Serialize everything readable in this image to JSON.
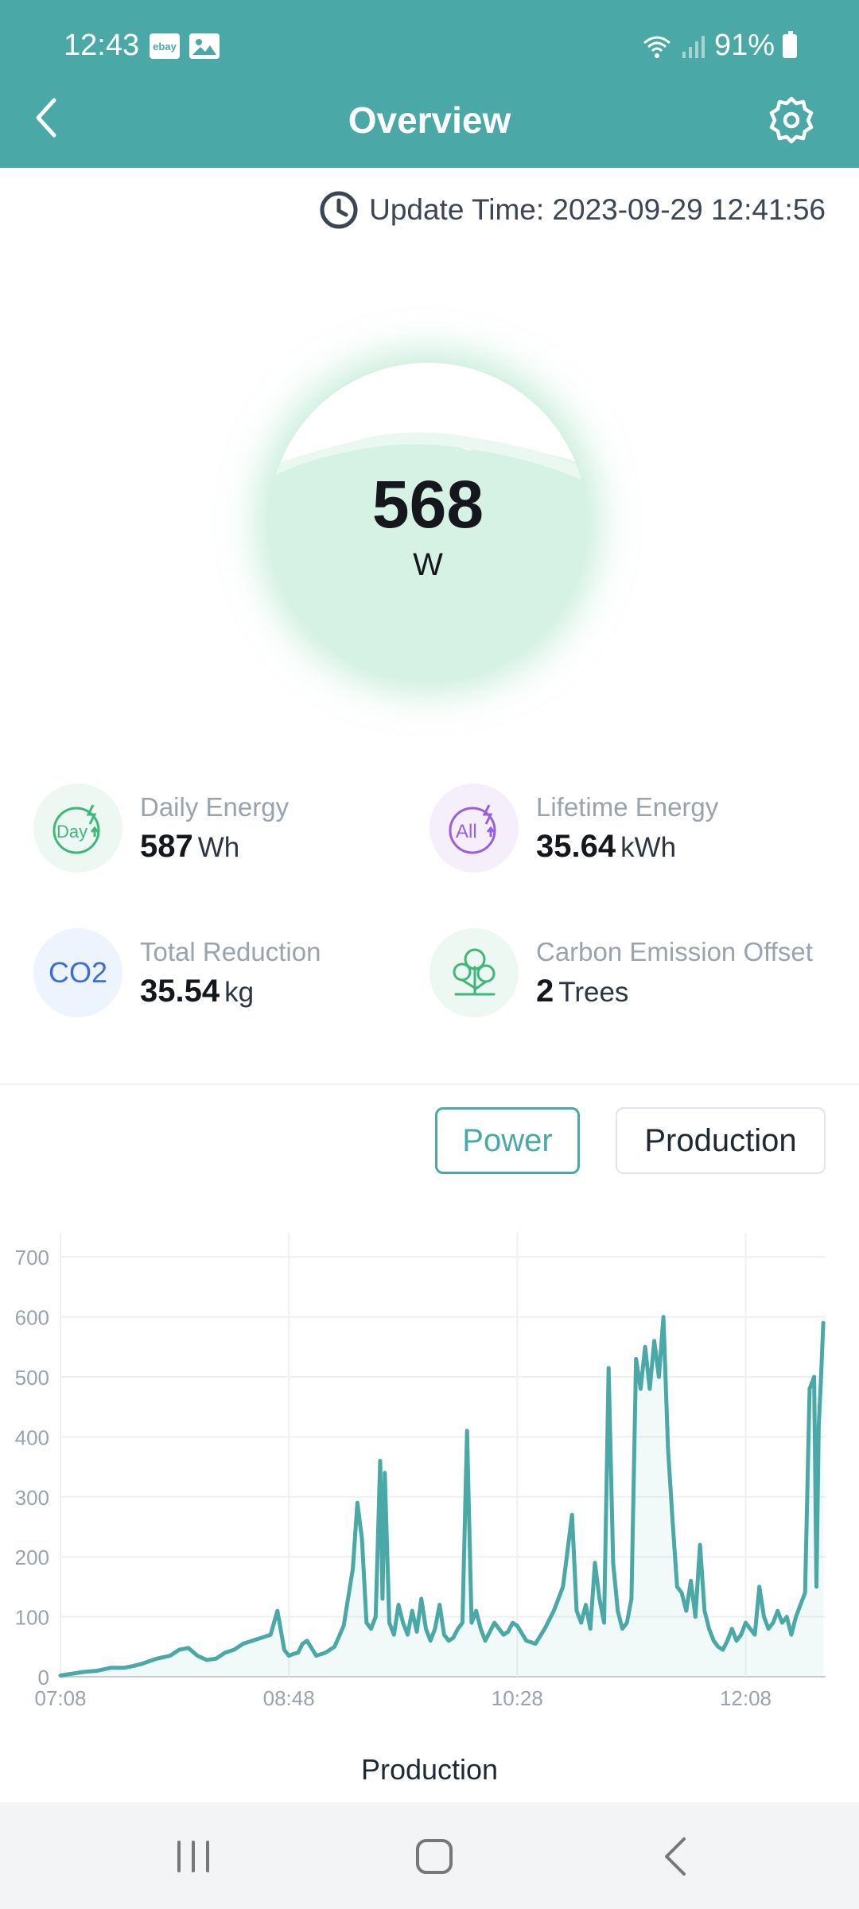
{
  "status_bar": {
    "time": "12:43",
    "ebay_label": "ebay",
    "battery": "91%",
    "icons": [
      "ebay-icon",
      "photo-icon",
      "wifi-icon",
      "signal-icon",
      "battery-icon"
    ]
  },
  "header": {
    "title": "Overview",
    "back_icon": "chevron-left-icon",
    "settings_icon": "gear-icon"
  },
  "update": {
    "text": "Update Time: 2023-09-29 12:41:56",
    "icon": "clock-icon"
  },
  "power": {
    "value": "568",
    "unit": "W"
  },
  "stats": [
    {
      "label": "Daily Energy",
      "value": "587",
      "unit": "Wh",
      "icon": "day-icon"
    },
    {
      "label": "Lifetime Energy",
      "value": "35.64",
      "unit": "kWh",
      "icon": "all-icon"
    },
    {
      "label": "Total Reduction",
      "value": "35.54",
      "unit": "kg",
      "icon": "co2-icon",
      "icon_text": "CO2"
    },
    {
      "label": "Carbon Emission Offset",
      "value": "2",
      "unit": "Trees",
      "icon": "tree-icon"
    }
  ],
  "toggles": {
    "power": "Power",
    "production": "Production",
    "active": "power"
  },
  "chart_label": "Production",
  "colors": {
    "accent": "#4aa9a7",
    "bubble": "#d6f2e4",
    "co2": "#3a6fd8",
    "day": "#3db87a",
    "all": "#9a5fe0"
  },
  "chart_data": {
    "type": "line",
    "x_ticks": [
      "07:08",
      "08:48",
      "10:28",
      "12:08"
    ],
    "y_ticks": [
      0,
      100,
      200,
      300,
      400,
      500,
      600,
      700
    ],
    "ylim": [
      0,
      740
    ],
    "xlim_minutes": [
      0,
      335
    ],
    "grid": true,
    "fill": true,
    "x_minutes": [
      0,
      5,
      10,
      16,
      22,
      28,
      32,
      36,
      42,
      48,
      52,
      56,
      60,
      64,
      68,
      72,
      76,
      80,
      84,
      88,
      92,
      95,
      98,
      100,
      102,
      104,
      106,
      108,
      112,
      116,
      120,
      124,
      128,
      130,
      132,
      134,
      136,
      138,
      140,
      141,
      142,
      144,
      146,
      148,
      150,
      152,
      154,
      156,
      158,
      160,
      162,
      164,
      166,
      168,
      170,
      172,
      174,
      176,
      178,
      180,
      182,
      184,
      186,
      188,
      190,
      192,
      194,
      196,
      198,
      200,
      204,
      208,
      212,
      216,
      220,
      224,
      226,
      228,
      230,
      232,
      234,
      236,
      238,
      240,
      242,
      244,
      246,
      248,
      250,
      252,
      254,
      256,
      258,
      260,
      262,
      264,
      266,
      268,
      270,
      272,
      274,
      276,
      278,
      280,
      282,
      284,
      286,
      288,
      290,
      292,
      294,
      296,
      298,
      300,
      302,
      304,
      306,
      308,
      310,
      312,
      314,
      316,
      318,
      320,
      322,
      324,
      326,
      328,
      330,
      331,
      332,
      333,
      334
    ],
    "values": [
      2,
      5,
      8,
      10,
      15,
      15,
      18,
      22,
      30,
      35,
      45,
      48,
      35,
      28,
      30,
      40,
      45,
      55,
      60,
      65,
      70,
      110,
      45,
      35,
      38,
      40,
      55,
      60,
      35,
      40,
      50,
      85,
      180,
      290,
      230,
      90,
      80,
      100,
      360,
      130,
      340,
      90,
      70,
      120,
      90,
      70,
      110,
      75,
      130,
      80,
      60,
      80,
      120,
      70,
      60,
      65,
      80,
      90,
      410,
      90,
      110,
      80,
      60,
      75,
      90,
      80,
      70,
      75,
      90,
      85,
      60,
      55,
      80,
      110,
      150,
      270,
      110,
      90,
      120,
      80,
      190,
      130,
      90,
      515,
      190,
      110,
      80,
      90,
      130,
      530,
      480,
      550,
      480,
      560,
      500,
      600,
      380,
      260,
      150,
      140,
      110,
      160,
      100,
      220,
      110,
      80,
      60,
      50,
      45,
      60,
      80,
      60,
      70,
      90,
      80,
      70,
      150,
      100,
      80,
      90,
      110,
      90,
      100,
      70,
      100,
      120,
      140,
      480,
      500,
      150,
      420,
      500,
      590
    ]
  }
}
